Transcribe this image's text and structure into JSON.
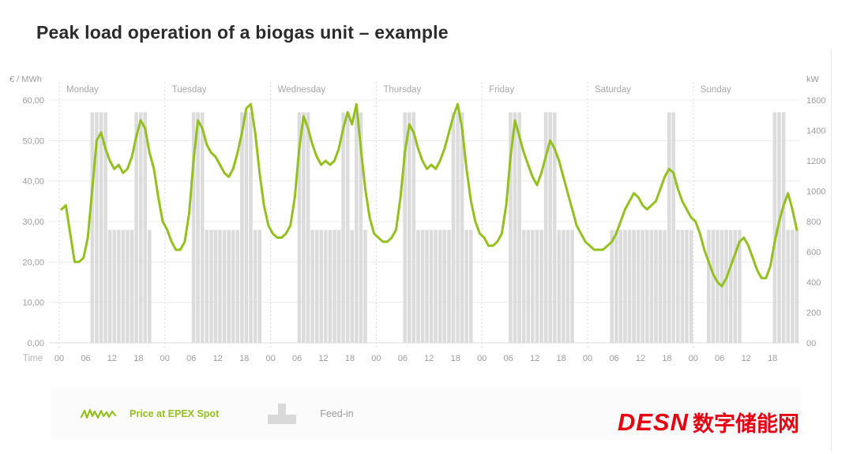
{
  "title": "Peak load operation of a biogas unit – example",
  "legend": {
    "price_label": "Price at EPEX Spot",
    "feedin_label": "Feed-in"
  },
  "watermark": {
    "latin": "DESN",
    "cjk": "数字储能网",
    "color": "#e60012"
  },
  "chart_data": {
    "type": "combo",
    "title": "Peak load operation of a biogas unit – example",
    "left_axis": {
      "label": "€ / MWh",
      "min": 0,
      "max": 60,
      "ticks": [
        "60,00",
        "50,00",
        "40,00",
        "30,00",
        "20,00",
        "10,00",
        "0,00"
      ]
    },
    "right_axis": {
      "label": "kW",
      "min": 0,
      "max": 1600,
      "ticks": [
        "1600",
        "1400",
        "1200",
        "1000",
        "800",
        "600",
        "400",
        "200",
        "00"
      ]
    },
    "x_axis": {
      "label": "Time",
      "day_labels": [
        "Monday",
        "Tuesday",
        "Wednesday",
        "Thursday",
        "Friday",
        "Saturday",
        "Sunday"
      ],
      "hour_ticks": [
        "00",
        "06",
        "12",
        "18"
      ],
      "hours_per_day": 24
    },
    "grid": true,
    "legend_position": "bottom",
    "series": [
      {
        "name": "Price at EPEX Spot",
        "type": "line",
        "unit": "€/MWh",
        "color": "#93c01f",
        "values": [
          33,
          34,
          27,
          20,
          20,
          21,
          26,
          38,
          50,
          52,
          48,
          45,
          43,
          44,
          42,
          43,
          46,
          51,
          55,
          53,
          47,
          43,
          36,
          30,
          28,
          25,
          23,
          23,
          25,
          32,
          45,
          55,
          53,
          49,
          47,
          46,
          44,
          42,
          41,
          43,
          47,
          52,
          58,
          59,
          52,
          42,
          34,
          29,
          27,
          26,
          26,
          27,
          29,
          36,
          48,
          56,
          53,
          49,
          46,
          44,
          45,
          44,
          45,
          48,
          53,
          57,
          54,
          59,
          48,
          38,
          31,
          27,
          26,
          25,
          25,
          26,
          28,
          36,
          47,
          54,
          52,
          48,
          45,
          43,
          44,
          43,
          45,
          48,
          52,
          56,
          59,
          53,
          43,
          35,
          30,
          27,
          26,
          24,
          24,
          25,
          27,
          34,
          46,
          55,
          51,
          47,
          44,
          41,
          39,
          42,
          46,
          50,
          48,
          45,
          41,
          37,
          33,
          29,
          27,
          25,
          24,
          23,
          23,
          23,
          24,
          25,
          27,
          30,
          33,
          35,
          37,
          36,
          34,
          33,
          34,
          35,
          38,
          41,
          43,
          42,
          38,
          35,
          33,
          31,
          30,
          27,
          23,
          20,
          17,
          15,
          14,
          16,
          19,
          22,
          25,
          26,
          24,
          21,
          18,
          16,
          16,
          19,
          25,
          30,
          34,
          37,
          33,
          28
        ]
      },
      {
        "name": "Feed-in",
        "type": "bar",
        "unit": "kW",
        "color": "#dcdcdc",
        "values": [
          0,
          0,
          0,
          0,
          0,
          0,
          0,
          1520,
          1520,
          1520,
          1520,
          745,
          745,
          745,
          745,
          745,
          745,
          1520,
          1520,
          1520,
          745,
          0,
          0,
          0,
          0,
          0,
          0,
          0,
          0,
          0,
          1520,
          1520,
          1520,
          745,
          745,
          745,
          745,
          745,
          745,
          745,
          745,
          1520,
          1520,
          1520,
          745,
          745,
          0,
          0,
          0,
          0,
          0,
          0,
          0,
          0,
          1520,
          1520,
          1520,
          745,
          745,
          745,
          745,
          745,
          745,
          745,
          1520,
          1520,
          745,
          1520,
          1520,
          745,
          0,
          0,
          0,
          0,
          0,
          0,
          0,
          0,
          1520,
          1520,
          1520,
          745,
          745,
          745,
          745,
          745,
          745,
          745,
          745,
          1520,
          1520,
          1520,
          745,
          745,
          0,
          0,
          0,
          0,
          0,
          0,
          0,
          0,
          1520,
          1520,
          1520,
          745,
          745,
          745,
          745,
          745,
          1520,
          1520,
          1520,
          745,
          745,
          745,
          745,
          0,
          0,
          0,
          0,
          0,
          0,
          0,
          0,
          745,
          745,
          745,
          745,
          745,
          745,
          745,
          745,
          745,
          745,
          745,
          745,
          745,
          1520,
          1520,
          745,
          745,
          745,
          745,
          0,
          0,
          0,
          745,
          745,
          745,
          745,
          745,
          745,
          745,
          745,
          0,
          0,
          0,
          0,
          0,
          0,
          0,
          1520,
          1520,
          1520,
          745,
          745,
          745
        ]
      }
    ]
  }
}
